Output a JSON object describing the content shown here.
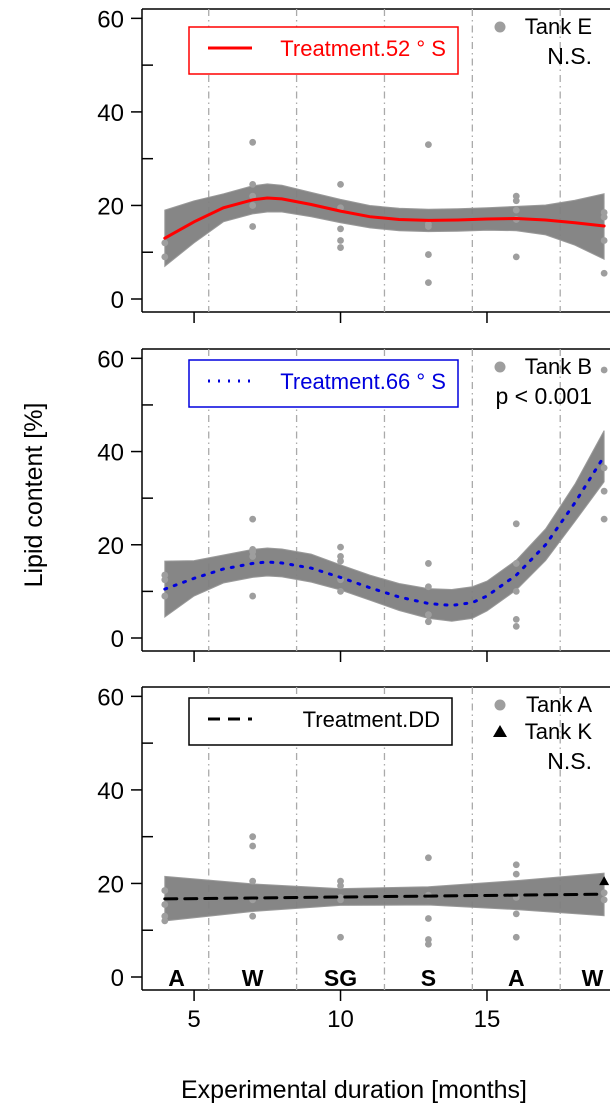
{
  "colors": {
    "panel_lines": [
      "#ff0000",
      "#0000dd",
      "#000000"
    ],
    "ribbon": "#808080",
    "points": "#9e9e9e",
    "season_lines": "#aaaaaa",
    "axis": "#000000"
  },
  "figure": {
    "ylabel": "Lipid content [%]",
    "xlabel": "Experimental duration [months]"
  },
  "chart_data": [
    {
      "type": "scatter",
      "panel": "top",
      "legend": {
        "line_style": "solid",
        "label": "Treatment.52 ° S"
      },
      "point_legend": [
        {
          "marker": "circle",
          "label": "Tank E"
        }
      ],
      "significance": "N.S.",
      "xlim": [
        3.7,
        19.2
      ],
      "ylim": [
        0,
        62
      ],
      "x_ticks": [
        5,
        10,
        15
      ],
      "x_tick_labels_shown": false,
      "y_ticks": [
        0,
        20,
        40,
        60
      ],
      "y_minor_ticks": [
        10,
        30,
        50
      ],
      "season_boundaries": [
        5.5,
        8.5,
        11.5,
        14.5,
        17.5
      ],
      "fit": {
        "x": [
          4,
          5,
          6,
          7,
          7.5,
          8,
          9,
          10,
          11,
          12,
          13,
          14,
          15,
          16,
          17,
          18,
          19
        ],
        "y": [
          13,
          16.5,
          19.5,
          21.2,
          21.6,
          21.4,
          20.2,
          18.8,
          17.6,
          17,
          16.8,
          16.9,
          17.1,
          17.2,
          16.9,
          16.3,
          15.6
        ],
        "lower": [
          7,
          12,
          16.5,
          18.2,
          18.6,
          18.6,
          17.6,
          16.3,
          15.2,
          14.6,
          14.4,
          14.5,
          14.7,
          14.6,
          13.7,
          11.5,
          8.5
        ],
        "upper": [
          19,
          21,
          22.5,
          24.2,
          24.6,
          24.3,
          22.8,
          21.3,
          20,
          19.4,
          19.2,
          19.3,
          19.5,
          19.8,
          20.1,
          21.1,
          22.5
        ]
      },
      "points": [
        [
          4,
          12
        ],
        [
          4,
          9
        ],
        [
          7,
          33.5
        ],
        [
          7,
          24.5
        ],
        [
          7,
          22
        ],
        [
          7,
          20
        ],
        [
          7,
          15.5
        ],
        [
          10,
          24.5
        ],
        [
          10,
          19.5
        ],
        [
          10,
          15
        ],
        [
          10,
          12.5
        ],
        [
          10,
          11
        ],
        [
          13,
          33
        ],
        [
          13,
          16
        ],
        [
          13,
          15.5
        ],
        [
          13,
          9.5
        ],
        [
          13,
          3.5
        ],
        [
          16,
          22
        ],
        [
          16,
          21
        ],
        [
          16,
          19
        ],
        [
          16,
          17
        ],
        [
          16,
          9
        ],
        [
          19,
          18.5
        ],
        [
          19,
          17.5
        ],
        [
          19,
          12.5
        ],
        [
          19,
          5.5
        ]
      ]
    },
    {
      "type": "scatter",
      "panel": "middle",
      "legend": {
        "line_style": "dotted",
        "label": "Treatment.66 ° S"
      },
      "point_legend": [
        {
          "marker": "circle",
          "label": "Tank B"
        }
      ],
      "significance": "p < 0.001",
      "xlim": [
        3.7,
        19.2
      ],
      "ylim": [
        0,
        62
      ],
      "x_ticks": [
        5,
        10,
        15
      ],
      "x_tick_labels_shown": false,
      "y_ticks": [
        0,
        20,
        40,
        60
      ],
      "y_minor_ticks": [
        10,
        30,
        50
      ],
      "season_boundaries": [
        5.5,
        8.5,
        11.5,
        14.5,
        17.5
      ],
      "fit": {
        "x": [
          4,
          5,
          6,
          7,
          7.5,
          8,
          9,
          10,
          11,
          12,
          13,
          13.8,
          14.5,
          15,
          16,
          17,
          18,
          19
        ],
        "y": [
          10.5,
          12.8,
          14.8,
          16,
          16.3,
          16.1,
          15,
          13,
          10.8,
          8.8,
          7.4,
          7,
          7.6,
          9,
          13.5,
          20,
          29,
          39
        ],
        "lower": [
          4.5,
          9,
          11.8,
          13,
          13.3,
          13.1,
          12,
          10.3,
          8.1,
          5.9,
          4.2,
          3.6,
          4.2,
          5.8,
          10.3,
          16.6,
          25,
          33.5
        ],
        "upper": [
          16.5,
          16.6,
          17.8,
          19,
          19.3,
          19.1,
          18,
          15.7,
          13.5,
          11.7,
          10.6,
          10.4,
          11,
          12.2,
          16.7,
          23.4,
          33,
          44.5
        ]
      },
      "points": [
        [
          4,
          13.5
        ],
        [
          4,
          12.5
        ],
        [
          4,
          9
        ],
        [
          7,
          25.5
        ],
        [
          7,
          19
        ],
        [
          7,
          18.5
        ],
        [
          7,
          17.5
        ],
        [
          7,
          9
        ],
        [
          10,
          19.5
        ],
        [
          10,
          17.5
        ],
        [
          10,
          16.5
        ],
        [
          10,
          12.5
        ],
        [
          10,
          10
        ],
        [
          13,
          16
        ],
        [
          13,
          11
        ],
        [
          13,
          5
        ],
        [
          13,
          3.5
        ],
        [
          16,
          24.5
        ],
        [
          16,
          16
        ],
        [
          16,
          10
        ],
        [
          16,
          4
        ],
        [
          16,
          2.5
        ],
        [
          19,
          57.5
        ],
        [
          19,
          36.5
        ],
        [
          19,
          31.5
        ],
        [
          19,
          25.5
        ]
      ]
    },
    {
      "type": "scatter",
      "panel": "bottom",
      "legend": {
        "line_style": "dashed",
        "label": "Treatment.DD"
      },
      "point_legend": [
        {
          "marker": "circle",
          "label": "Tank A"
        },
        {
          "marker": "triangle",
          "label": "Tank K"
        }
      ],
      "significance": "N.S.",
      "xlim": [
        3.7,
        19.2
      ],
      "ylim": [
        0,
        62
      ],
      "x_ticks": [
        5,
        10,
        15
      ],
      "x_tick_labels": [
        "5",
        "10",
        "15"
      ],
      "y_ticks": [
        0,
        20,
        40,
        60
      ],
      "y_minor_ticks": [
        10,
        30,
        50
      ],
      "season_boundaries": [
        5.5,
        8.5,
        11.5,
        14.5,
        17.5
      ],
      "seasons": [
        {
          "label": "A",
          "x": 4.4
        },
        {
          "label": "W",
          "x": 7
        },
        {
          "label": "SG",
          "x": 10
        },
        {
          "label": "S",
          "x": 13
        },
        {
          "label": "A",
          "x": 16
        },
        {
          "label": "W",
          "x": 18.6
        }
      ],
      "fit": {
        "x": [
          4,
          7,
          10,
          13,
          16,
          19
        ],
        "y": [
          16.7,
          16.9,
          17.1,
          17.3,
          17.5,
          17.7
        ],
        "lower": [
          12,
          14,
          15.3,
          15.4,
          14.4,
          13.1
        ],
        "upper": [
          21.5,
          19.9,
          18.9,
          19.3,
          20.6,
          22.2
        ]
      },
      "points": [
        [
          4,
          18.5
        ],
        [
          4,
          15.5
        ],
        [
          4,
          13
        ],
        [
          4,
          12
        ],
        [
          7,
          30
        ],
        [
          7,
          28
        ],
        [
          7,
          20.5
        ],
        [
          7,
          16.5
        ],
        [
          7,
          13
        ],
        [
          10,
          20.5
        ],
        [
          10,
          19.5
        ],
        [
          10,
          17
        ],
        [
          10,
          16.5
        ],
        [
          10,
          8.5
        ],
        [
          13,
          25.5
        ],
        [
          13,
          17.5
        ],
        [
          13,
          12.5
        ],
        [
          13,
          8
        ],
        [
          13,
          7
        ],
        [
          16,
          24
        ],
        [
          16,
          22
        ],
        [
          16,
          17
        ],
        [
          16,
          13.5
        ],
        [
          16,
          8.5
        ],
        [
          19,
          18
        ],
        [
          19,
          16.5
        ]
      ],
      "triangle_points": [
        [
          19,
          20.5
        ]
      ]
    }
  ]
}
